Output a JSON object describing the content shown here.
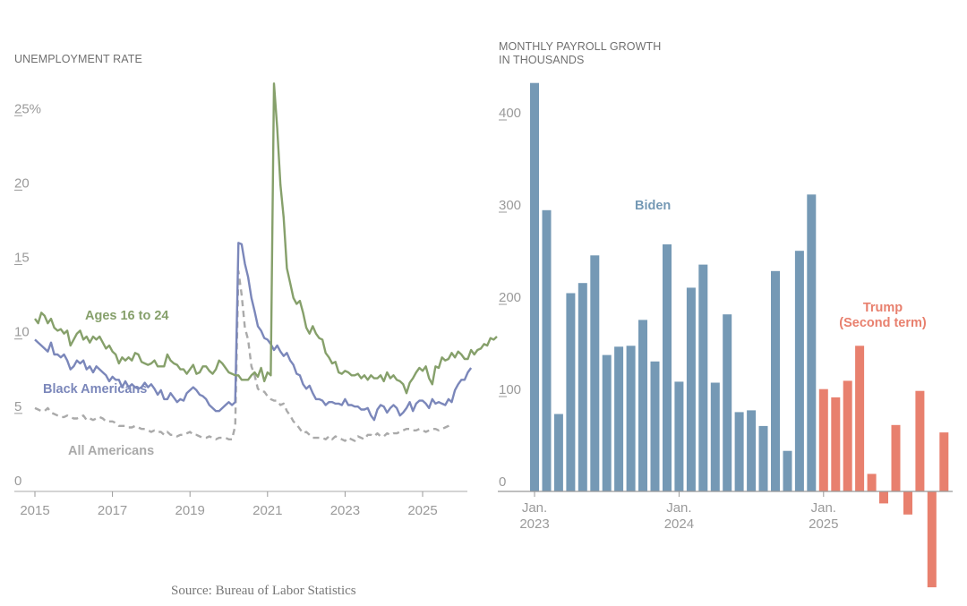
{
  "source": "Source: Bureau of Labor Statistics",
  "chart_data": [
    {
      "type": "line",
      "title": "UNEMPLOYMENT RATE",
      "xlabel": "",
      "ylabel": "",
      "ylim": [
        0,
        27.5
      ],
      "yticks": [
        0,
        5,
        10,
        15,
        20,
        25
      ],
      "ytick_labels": [
        "0",
        "5",
        "10",
        "15",
        "20",
        "25%"
      ],
      "xticks": [
        2015,
        2017,
        2019,
        2021,
        2023,
        2025
      ],
      "xtick_labels": [
        "2015",
        "2017",
        "2019",
        "2021",
        "2023",
        "2025"
      ],
      "x_start": "2015-01",
      "frequency": "monthly",
      "grid": false,
      "legend": "inline labels",
      "series": [
        {
          "name": "Ages 16 to 24",
          "color": "#86a06b",
          "style": "solid",
          "values": [
            11.6,
            11.3,
            12.0,
            11.8,
            11.3,
            11.6,
            11.0,
            10.8,
            10.9,
            10.6,
            10.8,
            9.8,
            10.2,
            10.6,
            10.8,
            10.2,
            10.4,
            10.0,
            10.4,
            10.2,
            10.4,
            10.0,
            9.6,
            9.8,
            9.4,
            9.2,
            8.6,
            9.0,
            8.8,
            9.0,
            8.8,
            9.3,
            9.2,
            8.7,
            8.6,
            8.5,
            8.6,
            8.8,
            8.4,
            8.4,
            8.4,
            9.2,
            8.8,
            8.6,
            8.5,
            8.2,
            8.2,
            7.9,
            8.2,
            8.5,
            7.9,
            8.0,
            8.4,
            8.4,
            8.1,
            7.9,
            8.2,
            8.8,
            8.6,
            8.3,
            8.0,
            7.9,
            7.8,
            7.8,
            7.5,
            7.5,
            7.5,
            7.8,
            8.0,
            7.7,
            8.3,
            7.4,
            8.0,
            7.8,
            27.4,
            24.4,
            20.6,
            18.4,
            15.0,
            14.0,
            13.0,
            12.6,
            12.8,
            12.0,
            11.0,
            10.6,
            11.1,
            10.6,
            10.3,
            10.2,
            9.3,
            9.0,
            8.6,
            8.7,
            8.0,
            7.9,
            8.1,
            8.0,
            7.8,
            7.8,
            7.9,
            7.6,
            7.8,
            7.5,
            7.8,
            7.6,
            7.6,
            7.8,
            7.4,
            8.0,
            7.6,
            7.8,
            7.5,
            7.4,
            7.2,
            6.6,
            7.3,
            7.6,
            8.0,
            8.3,
            8.1,
            8.4,
            7.6,
            7.2,
            8.4,
            8.3,
            9.0,
            8.8,
            8.9,
            9.3,
            9.0,
            9.4,
            9.2,
            8.9,
            8.9,
            9.5,
            9.2,
            9.5,
            9.6,
            9.9,
            9.8,
            10.3,
            10.2,
            10.4
          ]
        },
        {
          "name": "Black Americans",
          "color": "#7b87ba",
          "style": "solid",
          "values": [
            10.2,
            10.0,
            9.8,
            9.6,
            9.4,
            10.0,
            9.2,
            9.2,
            9.0,
            9.2,
            8.8,
            8.2,
            8.4,
            8.8,
            8.6,
            8.8,
            8.2,
            8.4,
            8.0,
            8.4,
            8.2,
            8.0,
            7.8,
            7.4,
            7.7,
            7.5,
            7.5,
            7.0,
            7.4,
            7.0,
            7.2,
            7.0,
            6.9,
            7.0,
            7.3,
            7.0,
            7.2,
            6.9,
            6.5,
            6.8,
            6.2,
            6.2,
            6.6,
            6.3,
            6.0,
            6.2,
            6.1,
            6.6,
            6.8,
            7.0,
            6.8,
            6.5,
            6.4,
            6.2,
            5.8,
            5.6,
            5.4,
            5.4,
            5.6,
            5.8,
            6.0,
            5.8,
            6.0,
            16.7,
            16.6,
            15.3,
            14.4,
            13.0,
            12.1,
            11.1,
            10.8,
            10.3,
            10.2,
            9.9,
            9.5,
            9.8,
            9.4,
            9.1,
            9.3,
            8.8,
            8.5,
            7.9,
            7.8,
            7.2,
            6.9,
            7.1,
            6.6,
            6.2,
            6.2,
            6.1,
            5.8,
            6.0,
            6.0,
            5.9,
            5.9,
            5.8,
            6.2,
            5.8,
            5.8,
            5.7,
            5.7,
            5.5,
            5.5,
            5.6,
            5.1,
            4.8,
            5.5,
            5.8,
            5.7,
            5.3,
            5.6,
            5.8,
            5.6,
            5.1,
            5.3,
            5.6,
            6.0,
            5.4,
            5.9,
            6.1,
            6.1,
            5.9,
            5.6,
            6.2,
            5.9,
            6.0,
            5.9,
            5.8,
            6.2,
            6.0,
            6.8,
            7.2,
            7.5,
            7.5,
            8.0,
            8.3
          ]
        },
        {
          "name": "All Americans",
          "color": "#aaaaaa",
          "style": "dashed",
          "values": [
            5.6,
            5.5,
            5.4,
            5.4,
            5.6,
            5.3,
            5.2,
            5.1,
            5.0,
            5.0,
            5.1,
            5.0,
            4.9,
            4.9,
            5.0,
            5.1,
            4.8,
            4.9,
            4.8,
            4.9,
            5.0,
            4.9,
            4.7,
            4.7,
            4.7,
            4.6,
            4.4,
            4.4,
            4.4,
            4.3,
            4.3,
            4.4,
            4.3,
            4.2,
            4.2,
            4.1,
            4.0,
            4.1,
            4.0,
            4.0,
            3.8,
            4.0,
            3.8,
            3.8,
            3.7,
            3.8,
            3.8,
            3.9,
            4.0,
            3.8,
            3.8,
            3.7,
            3.6,
            3.6,
            3.7,
            3.6,
            3.5,
            3.6,
            3.6,
            3.6,
            3.5,
            3.5,
            4.4,
            14.8,
            13.2,
            11.0,
            10.2,
            8.4,
            7.8,
            6.9,
            6.7,
            6.7,
            6.4,
            6.2,
            6.1,
            6.1,
            5.8,
            5.9,
            5.4,
            5.1,
            4.7,
            4.5,
            4.2,
            3.9,
            4.0,
            3.8,
            3.6,
            3.6,
            3.6,
            3.6,
            3.5,
            3.7,
            3.5,
            3.7,
            3.6,
            3.5,
            3.4,
            3.6,
            3.5,
            3.4,
            3.7,
            3.6,
            3.5,
            3.8,
            3.8,
            3.7,
            3.9,
            3.7,
            3.7,
            3.9,
            3.8,
            3.9,
            3.9,
            4.0,
            4.1,
            4.2,
            4.2,
            4.1,
            4.1,
            4.2,
            4.1,
            4.0,
            4.1,
            4.2,
            4.2,
            4.1,
            4.2,
            4.3,
            4.4,
            4.6
          ]
        }
      ]
    },
    {
      "type": "bar",
      "title": "MONTHLY PAYROLL GROWTH\nIN THOUSANDS",
      "title_lines": [
        "MONTHLY PAYROLL GROWTH",
        "IN THOUSANDS"
      ],
      "xlabel": "",
      "ylabel": "",
      "ylim": [
        -110,
        450
      ],
      "yticks": [
        0,
        100,
        200,
        300,
        400
      ],
      "ytick_labels": [
        "0",
        "100",
        "200",
        "300",
        "400"
      ],
      "xticks": [
        "2023-01",
        "2024-01",
        "2025-01"
      ],
      "xtick_labels": [
        [
          "Jan.",
          "2023"
        ],
        [
          "Jan.",
          "2024"
        ],
        [
          "Jan.",
          "2025"
        ]
      ],
      "x_start": "2023-01",
      "frequency": "monthly",
      "grid": false,
      "legend": "inline labels",
      "series": [
        {
          "name": "Biden",
          "color": "#7599b5",
          "values": [
            443,
            305,
            84,
            215,
            226,
            256,
            148,
            157,
            158,
            186,
            141,
            268,
            119,
            221,
            246,
            118,
            192,
            86,
            88,
            71,
            239,
            44,
            261,
            322
          ]
        },
        {
          "name": "Trump (Second term)",
          "label_lines": [
            "Trump",
            "(Second term)"
          ],
          "color": "#e8806e",
          "values": [
            111,
            102,
            120,
            158,
            19,
            -13,
            72,
            -25,
            109,
            -104,
            64
          ]
        }
      ]
    }
  ]
}
